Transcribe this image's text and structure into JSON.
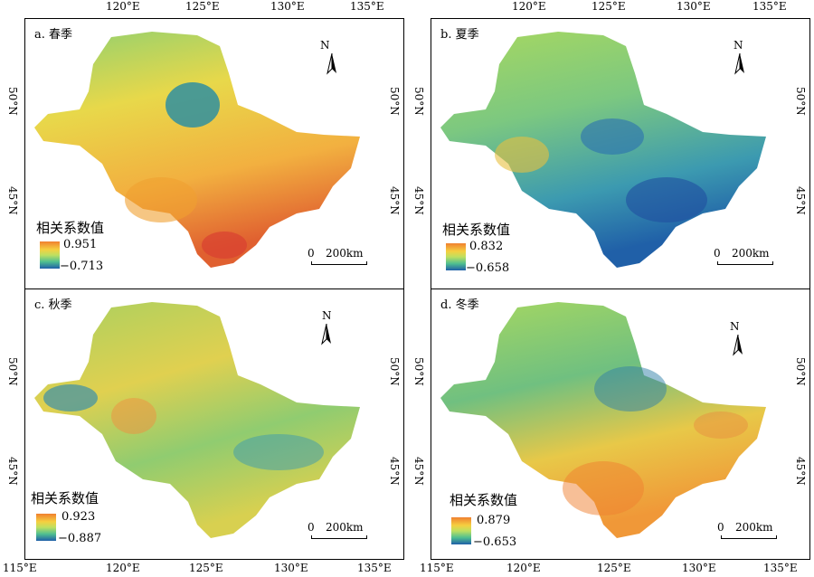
{
  "panels": [
    {
      "id": "a",
      "title": "a. 春季",
      "legend_title": "相关系数值",
      "max": "0.951",
      "min": "−0.713"
    },
    {
      "id": "b",
      "title": "b. 夏季",
      "legend_title": "相关系数值",
      "max": "0.832",
      "min": "−0.658"
    },
    {
      "id": "c",
      "title": "c. 秋季",
      "legend_title": "相关系数值",
      "max": "0.923",
      "min": "−0.887"
    },
    {
      "id": "d",
      "title": "d. 冬季",
      "legend_title": "相关系数值",
      "max": "0.879",
      "min": "−0.653"
    }
  ],
  "north_label": "N",
  "scale_bar": {
    "zero": "0",
    "length": "200km"
  },
  "lon_labels": [
    "115°E",
    "120°E",
    "125°E",
    "130°E",
    "135°E"
  ],
  "lat_labels": [
    "50°N",
    "45°N"
  ],
  "colors": {
    "high": "#f08030",
    "mid_high": "#f5d040",
    "mid": "#bfe060",
    "mid_low": "#4fbf90",
    "low": "#1f5fa8"
  }
}
